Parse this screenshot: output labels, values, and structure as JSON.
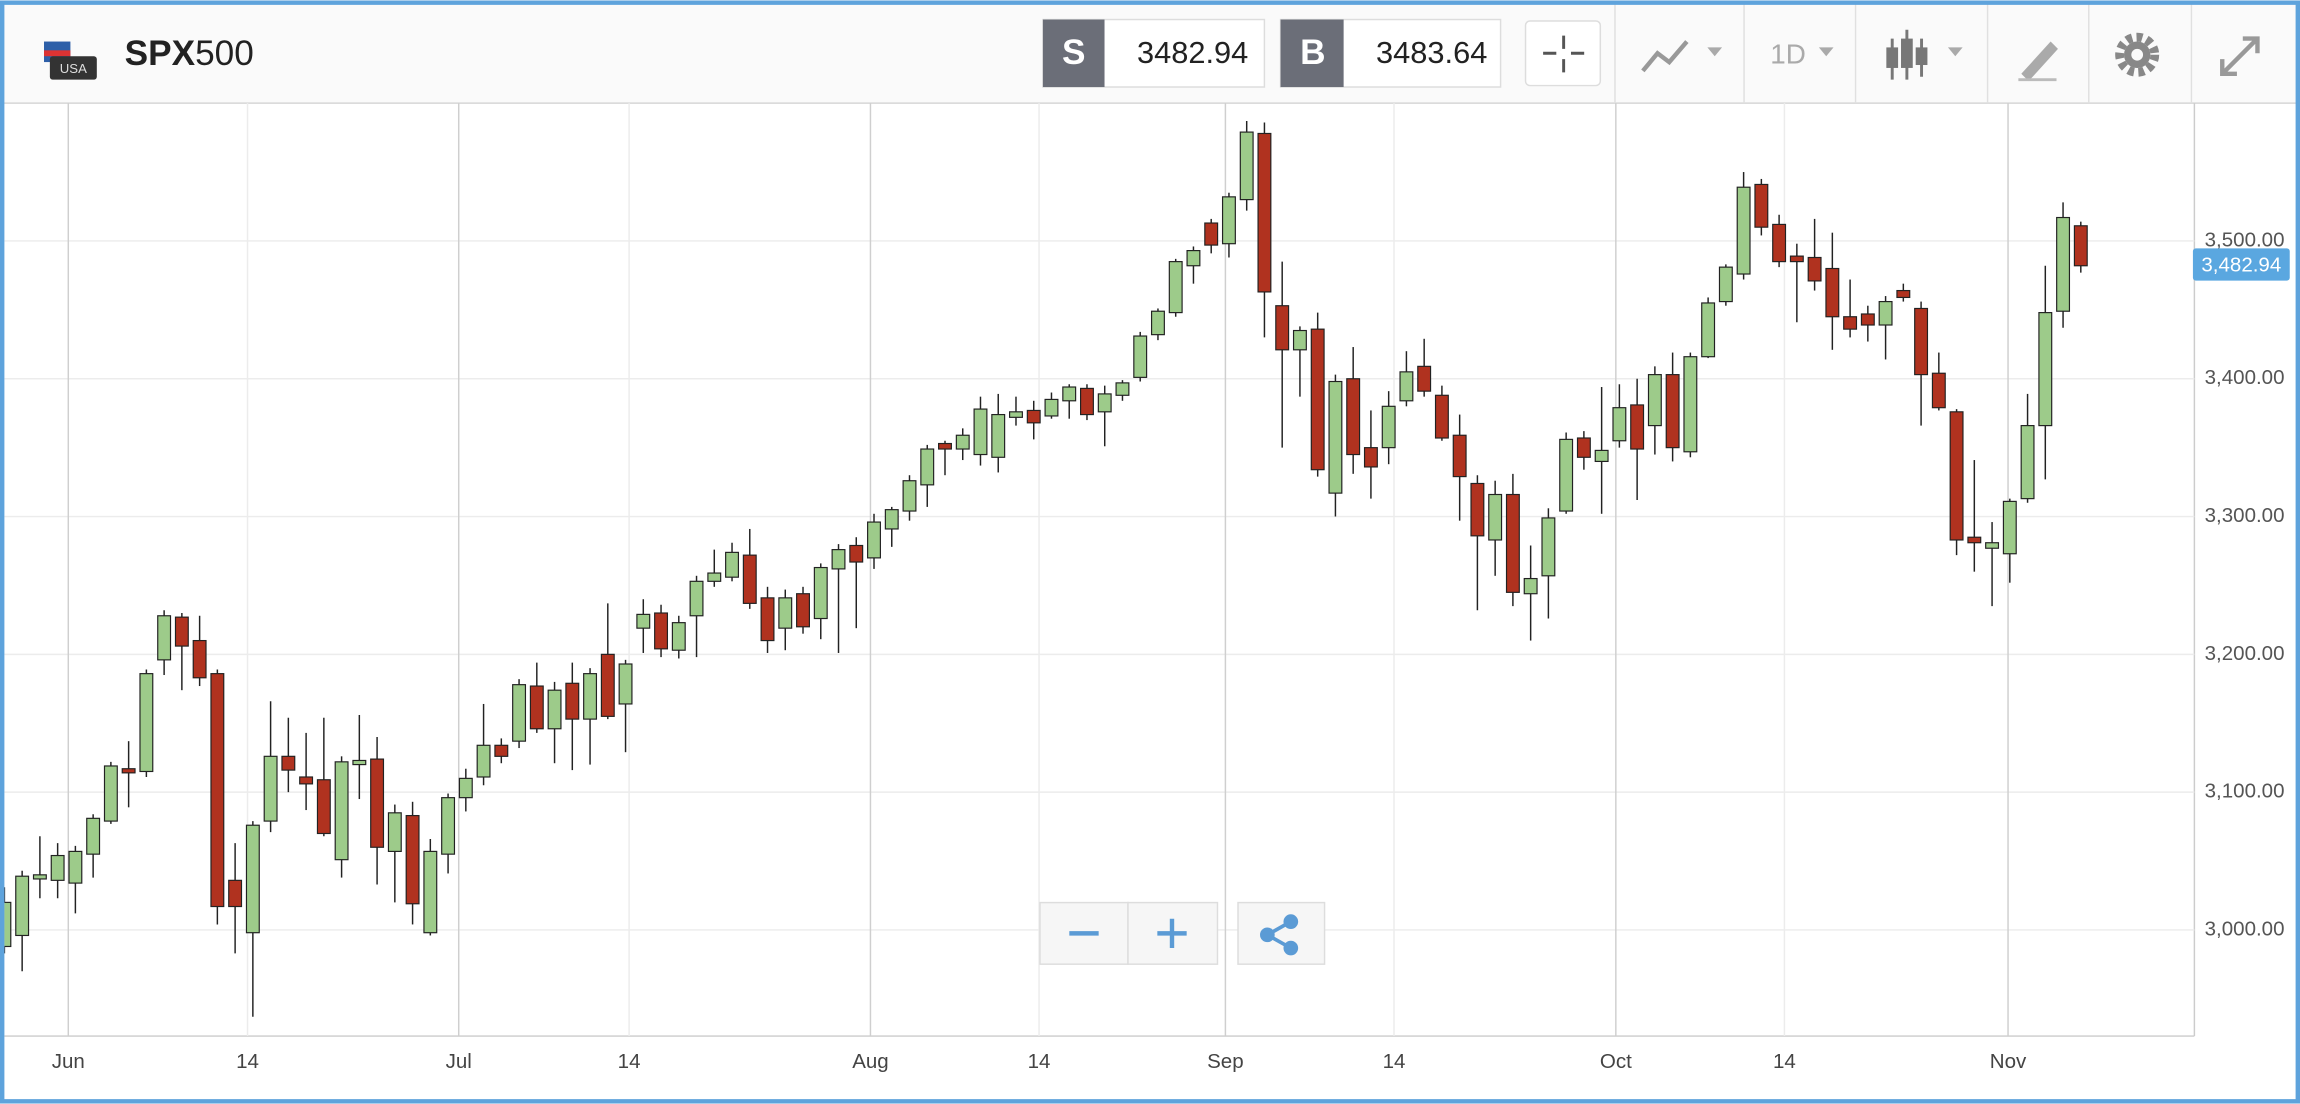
{
  "header": {
    "flag_label": "USA",
    "symbol_main": "SPX",
    "symbol_suffix": "500",
    "sell_label": "S",
    "sell_price": "3482.94",
    "buy_label": "B",
    "buy_price": "3483.64",
    "timeframe": "1D"
  },
  "chart_data": {
    "type": "candlestick",
    "series": {
      "open": [
        2988,
        2996,
        3037,
        3036,
        3034,
        3055,
        3079,
        3117,
        3115,
        3196,
        3227,
        3210,
        3186,
        3036,
        2998,
        3079,
        3126,
        3111,
        3109,
        3051,
        3120,
        3124,
        3057,
        3083,
        2998,
        3055,
        3096,
        3111,
        3134,
        3137,
        3177,
        3146,
        3179,
        3153,
        3200,
        3164,
        3219,
        3230,
        3203,
        3228,
        3253,
        3256,
        3272,
        3241,
        3219,
        3244,
        3226,
        3262,
        3279,
        3270,
        3291,
        3304,
        3323,
        3353,
        3349,
        3345,
        3343,
        3372,
        3377,
        3373,
        3384,
        3393,
        3376,
        3388,
        3401,
        3432,
        3448,
        3482,
        3513,
        3498,
        3530,
        3578,
        3453,
        3421,
        3436,
        3317,
        3400,
        3350,
        3350,
        3384,
        3409,
        3388,
        3359,
        3324,
        3283,
        3316,
        3244,
        3257,
        3304,
        3357,
        3340,
        3355,
        3381,
        3366,
        3403,
        3347,
        3416,
        3456,
        3476,
        3541,
        3512,
        3489,
        3488,
        3480,
        3445,
        3447,
        3439,
        3464,
        3451,
        3404,
        3376,
        3285,
        3277,
        3273,
        3313,
        3366,
        3449,
        3511
      ],
      "high": [
        3031,
        3043,
        3068,
        3063,
        3061,
        3084,
        3122,
        3137,
        3189,
        3232,
        3230,
        3228,
        3189,
        3063,
        3079,
        3166,
        3154,
        3143,
        3154,
        3126,
        3156,
        3140,
        3091,
        3093,
        3066,
        3099,
        3117,
        3164,
        3139,
        3182,
        3194,
        3180,
        3194,
        3190,
        3237,
        3196,
        3240,
        3236,
        3228,
        3257,
        3276,
        3281,
        3291,
        3249,
        3247,
        3249,
        3266,
        3280,
        3285,
        3302,
        3307,
        3330,
        3352,
        3355,
        3364,
        3387,
        3389,
        3387,
        3384,
        3390,
        3396,
        3396,
        3395,
        3399,
        3434,
        3451,
        3487,
        3496,
        3516,
        3535,
        3587,
        3586,
        3485,
        3438,
        3448,
        3403,
        3423,
        3377,
        3391,
        3420,
        3429,
        3395,
        3374,
        3330,
        3326,
        3331,
        3279,
        3306,
        3361,
        3362,
        3394,
        3396,
        3400,
        3409,
        3419,
        3419,
        3459,
        3483,
        3550,
        3545,
        3519,
        3498,
        3516,
        3506,
        3472,
        3453,
        3460,
        3469,
        3456,
        3419,
        3378,
        3341,
        3296,
        3313,
        3389,
        3482,
        3528,
        3514
      ],
      "low": [
        2983,
        2970,
        3023,
        3023,
        3012,
        3038,
        3077,
        3089,
        3111,
        3185,
        3174,
        3177,
        3004,
        2983,
        2937,
        3071,
        3100,
        3087,
        3068,
        3038,
        3095,
        3033,
        3020,
        3004,
        2996,
        3041,
        3086,
        3105,
        3121,
        3132,
        3143,
        3121,
        3116,
        3120,
        3153,
        3129,
        3201,
        3198,
        3197,
        3198,
        3249,
        3253,
        3233,
        3201,
        3203,
        3215,
        3211,
        3201,
        3219,
        3262,
        3278,
        3297,
        3307,
        3330,
        3341,
        3337,
        3332,
        3366,
        3356,
        3371,
        3371,
        3370,
        3351,
        3384,
        3398,
        3428,
        3445,
        3469,
        3491,
        3488,
        3522,
        3430,
        3350,
        3387,
        3329,
        3300,
        3331,
        3313,
        3338,
        3380,
        3387,
        3355,
        3297,
        3232,
        3257,
        3235,
        3210,
        3226,
        3302,
        3334,
        3302,
        3350,
        3312,
        3345,
        3340,
        3343,
        3415,
        3453,
        3472,
        3504,
        3481,
        3441,
        3464,
        3421,
        3430,
        3427,
        3414,
        3456,
        3366,
        3377,
        3272,
        3260,
        3235,
        3252,
        3310,
        3327,
        3437,
        3477
      ],
      "close": [
        3020,
        3039,
        3040,
        3054,
        3057,
        3081,
        3119,
        3114,
        3186,
        3228,
        3206,
        3183,
        3017,
        3017,
        3076,
        3126,
        3116,
        3106,
        3070,
        3122,
        3123,
        3060,
        3085,
        3019,
        3057,
        3096,
        3110,
        3134,
        3126,
        3178,
        3146,
        3174,
        3153,
        3186,
        3155,
        3193,
        3229,
        3204,
        3223,
        3253,
        3259,
        3274,
        3237,
        3210,
        3241,
        3220,
        3263,
        3276,
        3267,
        3296,
        3305,
        3326,
        3349,
        3349,
        3359,
        3378,
        3374,
        3376,
        3368,
        3385,
        3394,
        3374,
        3389,
        3397,
        3431,
        3449,
        3485,
        3493,
        3497,
        3532,
        3579,
        3463,
        3421,
        3435,
        3334,
        3398,
        3345,
        3336,
        3380,
        3405,
        3391,
        3357,
        3329,
        3286,
        3316,
        3245,
        3255,
        3299,
        3356,
        3343,
        3348,
        3379,
        3349,
        3403,
        3350,
        3416,
        3455,
        3481,
        3539,
        3510,
        3485,
        3485,
        3471,
        3445,
        3436,
        3439,
        3456,
        3459,
        3403,
        3379,
        3283,
        3281,
        3281,
        3311,
        3366,
        3448,
        3517,
        3482
      ]
    },
    "up_color": "#9dcb8a",
    "down_color": "#b0321f",
    "xlim": [
      0,
      123.4
    ],
    "xticks": [
      {
        "value": 3.6,
        "label": "Jun"
      },
      {
        "value": 13.7,
        "label": "14"
      },
      {
        "value": 25.6,
        "label": "Jul"
      },
      {
        "value": 35.2,
        "label": "14"
      },
      {
        "value": 48.8,
        "label": "Aug"
      },
      {
        "value": 58.3,
        "label": "14"
      },
      {
        "value": 68.8,
        "label": "Sep"
      },
      {
        "value": 78.3,
        "label": "14"
      },
      {
        "value": 90.8,
        "label": "Oct"
      },
      {
        "value": 100.3,
        "label": "14"
      },
      {
        "value": 112.9,
        "label": "Nov"
      }
    ],
    "ylim": [
      2923,
      3600
    ],
    "yticks": [
      {
        "value": 3000,
        "label": "3,000.00"
      },
      {
        "value": 3100,
        "label": "3,100.00"
      },
      {
        "value": 3200,
        "label": "3,200.00"
      },
      {
        "value": 3300,
        "label": "3,300.00"
      },
      {
        "value": 3400,
        "label": "3,400.00"
      },
      {
        "value": 3500,
        "label": "3,500.00"
      }
    ],
    "last_price": {
      "value": 3482.94,
      "label": "3,482.94"
    },
    "grid": true
  }
}
